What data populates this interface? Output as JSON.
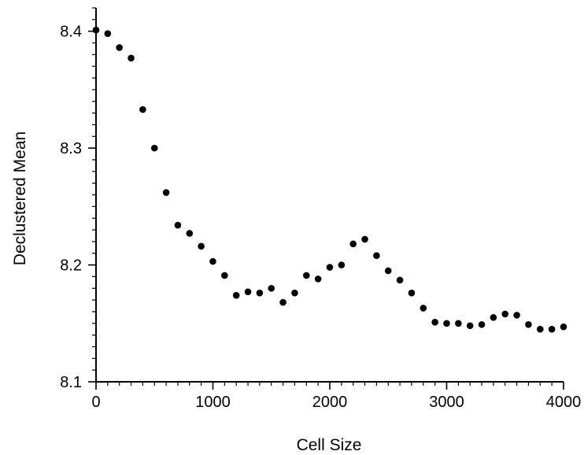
{
  "chart_data": {
    "type": "scatter",
    "title": "",
    "xlabel": "Cell Size",
    "ylabel": "Declustered Mean",
    "xlim": [
      0,
      4000
    ],
    "ylim": [
      8.1,
      8.42
    ],
    "x_ticks": [
      "0",
      "1000",
      "2000",
      "3000",
      "4000"
    ],
    "y_ticks": [
      "8.1",
      "8.2",
      "8.3",
      "8.4"
    ],
    "x_tick_values": [
      0,
      1000,
      2000,
      3000,
      4000
    ],
    "y_tick_values": [
      8.1,
      8.2,
      8.3,
      8.4
    ],
    "x_minor_step": 100,
    "y_minor_step": 0.01,
    "grid": false,
    "legend": "none",
    "marker_color": "#000000",
    "series": [
      {
        "x": [
          0,
          100,
          200,
          300,
          400,
          500,
          600,
          700,
          800,
          900,
          1000,
          1100,
          1200,
          1300,
          1400,
          1500,
          1600,
          1700,
          1800,
          1900,
          2000,
          2100,
          2200,
          2300,
          2400,
          2500,
          2600,
          2700,
          2800,
          2900,
          3000,
          3100,
          3200,
          3300,
          3400,
          3500,
          3600,
          3700,
          3800,
          3900,
          4000
        ],
        "y": [
          8.401,
          8.398,
          8.386,
          8.377,
          8.333,
          8.3,
          8.262,
          8.234,
          8.227,
          8.216,
          8.203,
          8.191,
          8.174,
          8.177,
          8.176,
          8.18,
          8.168,
          8.176,
          8.191,
          8.188,
          8.198,
          8.2,
          8.218,
          8.222,
          8.208,
          8.195,
          8.187,
          8.176,
          8.163,
          8.151,
          8.15,
          8.15,
          8.148,
          8.149,
          8.155,
          8.158,
          8.157,
          8.149,
          8.145,
          8.145,
          8.147
        ]
      }
    ]
  }
}
